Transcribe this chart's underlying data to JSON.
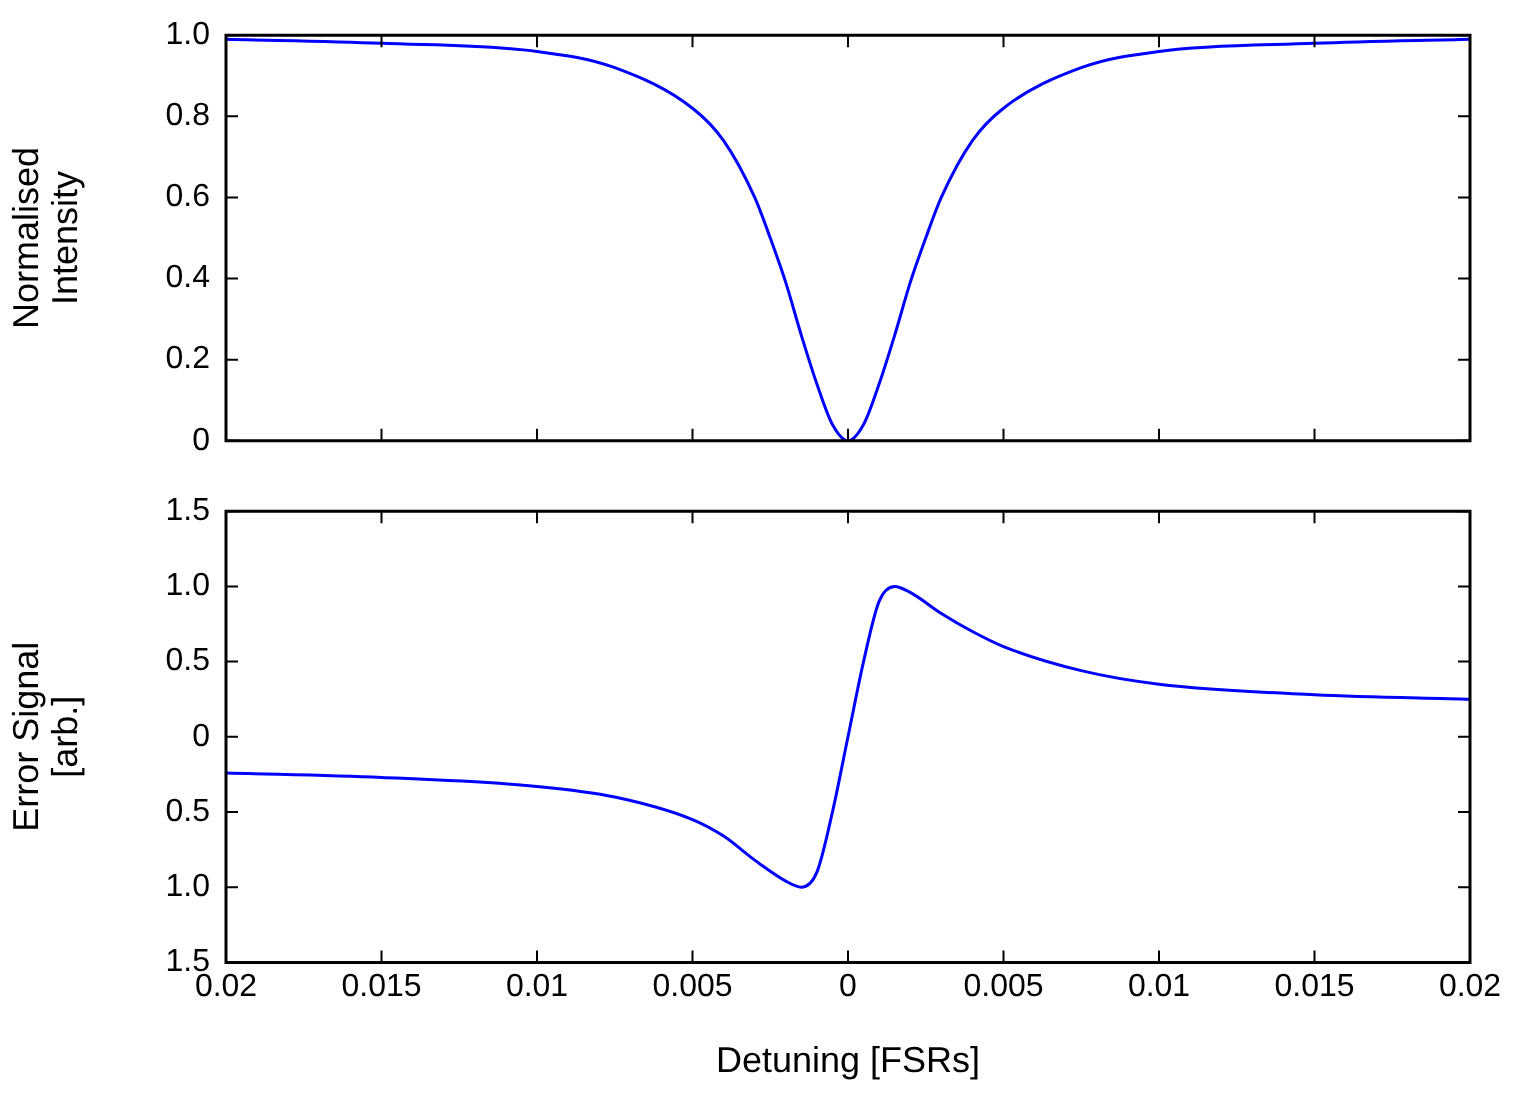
{
  "chart_data": [
    {
      "type": "line",
      "ylabel": "Normalised Intensity",
      "xlim": [
        -0.02,
        0.02
      ],
      "ylim": [
        0,
        1
      ],
      "tick_labels": "y",
      "grid": false,
      "legend": false,
      "marker": "none",
      "line_style": "solid",
      "xticks": [
        {
          "value": -0.02,
          "label": null
        },
        {
          "value": -0.015,
          "label": null
        },
        {
          "value": -0.01,
          "label": null
        },
        {
          "value": -0.005,
          "label": null
        },
        {
          "value": 0,
          "label": null
        },
        {
          "value": 0.005,
          "label": null
        },
        {
          "value": 0.01,
          "label": null
        },
        {
          "value": 0.015,
          "label": null
        },
        {
          "value": 0.02,
          "label": null
        }
      ],
      "yticks": [
        0,
        {
          "value": 0.2,
          "label": "0.2"
        },
        {
          "value": 0.4,
          "label": "0.4"
        },
        {
          "value": 0.6,
          "label": "0.6"
        },
        {
          "value": 0.8,
          "label": "0.8"
        },
        {
          "value": 1,
          "label": "1.0"
        }
      ],
      "x": [
        -0.02,
        -0.015,
        -0.01,
        -0.0075,
        -0.005,
        -0.004,
        -0.003,
        -0.0025,
        -0.002,
        -0.0015,
        -0.001,
        -0.0005,
        0,
        0.0005,
        0.001,
        0.0015,
        0.002,
        0.0025,
        0.003,
        0.004,
        0.005,
        0.0075,
        0.01,
        0.015,
        0.02
      ],
      "series": [
        {
          "color": "#0000ff",
          "values": [
            0.99,
            0.98,
            0.96,
            0.92,
            0.82,
            0.74,
            0.6,
            0.5,
            0.39,
            0.26,
            0.14,
            0.04,
            0,
            0.04,
            0.14,
            0.26,
            0.39,
            0.5,
            0.6,
            0.74,
            0.82,
            0.92,
            0.96,
            0.98,
            0.99
          ]
        }
      ]
    },
    {
      "type": "line",
      "ylabel": "Error Signal [arb.]",
      "xlabel": "Detuning [FSRs]",
      "xlim": [
        -0.02,
        0.02
      ],
      "ylim": [
        -1.5,
        1.5
      ],
      "grid": false,
      "legend": false,
      "marker": "none",
      "line_style": "solid",
      "xticks": [
        {
          "value": -0.02,
          "label": "0.02"
        },
        {
          "value": -0.015,
          "label": "0.015"
        },
        {
          "value": -0.01,
          "label": "0.01"
        },
        {
          "value": -0.005,
          "label": "0.005"
        },
        0,
        0.005,
        0.01,
        0.015,
        0.02
      ],
      "yticks": [
        {
          "value": -1.5,
          "label": "1.5"
        },
        {
          "value": -1,
          "label": "1.0"
        },
        {
          "value": -0.5,
          "label": "0.5"
        },
        0,
        0.5,
        {
          "value": 1,
          "label": "1.0"
        },
        1.5
      ],
      "x": [
        -0.02,
        -0.015,
        -0.01,
        -0.0075,
        -0.005,
        -0.004,
        -0.003,
        -0.002,
        -0.0015,
        -0.001,
        -0.0005,
        0,
        0.0005,
        0.001,
        0.0015,
        0.002,
        0.003,
        0.004,
        0.005,
        0.0075,
        0.01,
        0.015,
        0.02
      ],
      "series": [
        {
          "color": "#0000ff",
          "values": [
            -0.24,
            -0.27,
            -0.33,
            -0.4,
            -0.55,
            -0.66,
            -0.82,
            -0.96,
            -1.0,
            -0.9,
            -0.5,
            0,
            0.5,
            0.9,
            1.0,
            0.96,
            0.82,
            0.7,
            0.6,
            0.44,
            0.35,
            0.28,
            0.25
          ]
        }
      ]
    }
  ]
}
